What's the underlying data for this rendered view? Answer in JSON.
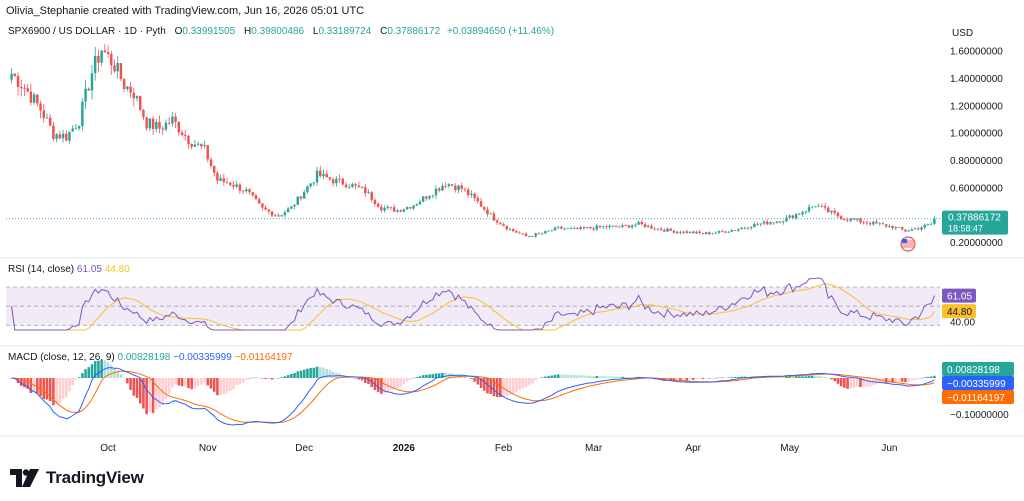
{
  "credit": "Olivia_Stephanie created with TradingView.com, Jun 16, 2026 05:01 UTC",
  "symbol": "SPX6900 / US DOLLAR · 1D · Pyth",
  "ohlc": {
    "o_label": "O",
    "o": "0.33991505",
    "h_label": "H",
    "h": "0.39800486",
    "l_label": "L",
    "l": "0.33189724",
    "c_label": "C",
    "c": "0.37886172",
    "change": "+0.03894650 (+11.46%)"
  },
  "currency": "USD",
  "brand": "TradingView",
  "colors": {
    "up": "#26a69a",
    "down": "#ef5350",
    "rsi": "#7e57c2",
    "rsi_ma": "#fbc02d",
    "macd": "#2962ff",
    "signal": "#ff6d00",
    "hist_up": "#b2dfdb",
    "hist_down": "#ffcdd2"
  },
  "chart_data": [
    {
      "type": "candlestick",
      "series_name": "SPX6900 / US DOLLAR",
      "x_range": [
        "2025-09-01",
        "2026-06-15"
      ],
      "x_ticks": [
        "Oct",
        "Nov",
        "Dec",
        "2026",
        "Feb",
        "Mar",
        "Apr",
        "May",
        "Jun"
      ],
      "y_ticks": [
        "1.60000000",
        "1.40000000",
        "1.20000000",
        "1.00000000",
        "0.80000000",
        "0.60000000",
        "0.20000000"
      ],
      "last_price": "0.37886172",
      "countdown": "18:58:47",
      "close_anchors": [
        [
          "2025-09-01",
          1.44
        ],
        [
          "2025-09-05",
          1.34
        ],
        [
          "2025-09-10",
          1.18
        ],
        [
          "2025-09-14",
          1.0
        ],
        [
          "2025-09-18",
          0.98
        ],
        [
          "2025-09-22",
          1.1
        ],
        [
          "2025-09-26",
          1.45
        ],
        [
          "2025-09-29",
          1.62
        ],
        [
          "2025-10-03",
          1.5
        ],
        [
          "2025-10-06",
          1.36
        ],
        [
          "2025-10-09",
          1.3
        ],
        [
          "2025-10-13",
          1.08
        ],
        [
          "2025-10-17",
          1.04
        ],
        [
          "2025-10-21",
          1.1
        ],
        [
          "2025-10-26",
          0.96
        ],
        [
          "2025-10-31",
          0.88
        ],
        [
          "2025-11-04",
          0.66
        ],
        [
          "2025-11-08",
          0.64
        ],
        [
          "2025-11-13",
          0.58
        ],
        [
          "2025-11-18",
          0.45
        ],
        [
          "2025-11-23",
          0.4
        ],
        [
          "2025-11-27",
          0.46
        ],
        [
          "2025-12-01",
          0.58
        ],
        [
          "2025-12-05",
          0.7
        ],
        [
          "2025-12-10",
          0.66
        ],
        [
          "2025-12-15",
          0.63
        ],
        [
          "2025-12-20",
          0.58
        ],
        [
          "2025-12-25",
          0.46
        ],
        [
          "2025-12-30",
          0.44
        ],
        [
          "2026-01-04",
          0.48
        ],
        [
          "2026-01-09",
          0.56
        ],
        [
          "2026-01-14",
          0.64
        ],
        [
          "2026-01-19",
          0.6
        ],
        [
          "2026-01-24",
          0.5
        ],
        [
          "2026-01-29",
          0.38
        ],
        [
          "2026-02-03",
          0.3
        ],
        [
          "2026-02-08",
          0.25
        ],
        [
          "2026-02-13",
          0.27
        ],
        [
          "2026-02-18",
          0.31
        ],
        [
          "2026-02-23",
          0.3
        ],
        [
          "2026-02-28",
          0.31
        ],
        [
          "2026-03-05",
          0.32
        ],
        [
          "2026-03-10",
          0.32
        ],
        [
          "2026-03-15",
          0.34
        ],
        [
          "2026-03-20",
          0.31
        ],
        [
          "2026-03-25",
          0.29
        ],
        [
          "2026-03-30",
          0.28
        ],
        [
          "2026-04-04",
          0.27
        ],
        [
          "2026-04-09",
          0.28
        ],
        [
          "2026-04-14",
          0.3
        ],
        [
          "2026-04-19",
          0.33
        ],
        [
          "2026-04-24",
          0.35
        ],
        [
          "2026-04-29",
          0.37
        ],
        [
          "2026-05-04",
          0.42
        ],
        [
          "2026-05-09",
          0.48
        ],
        [
          "2026-05-13",
          0.43
        ],
        [
          "2026-05-18",
          0.38
        ],
        [
          "2026-05-23",
          0.36
        ],
        [
          "2026-05-28",
          0.34
        ],
        [
          "2026-06-02",
          0.32
        ],
        [
          "2026-06-06",
          0.29
        ],
        [
          "2026-06-10",
          0.31
        ],
        [
          "2026-06-14",
          0.34
        ],
        [
          "2026-06-15",
          0.379
        ]
      ]
    },
    {
      "type": "line",
      "title": "RSI (14, close)",
      "series": [
        {
          "name": "RSI",
          "value_label": "61.05",
          "last": 61.05
        },
        {
          "name": "RSI MA",
          "value_label": "44.80",
          "last": 44.8
        }
      ],
      "y_ticks": [
        "40.00"
      ],
      "bands": [
        30,
        70
      ]
    },
    {
      "type": "bar",
      "title": "MACD (close, 12, 26, 9)",
      "legend_values": [
        "0.00828198",
        "−0.00335999",
        "−0.01164197"
      ],
      "y_ticks": [
        "−0.10000000"
      ],
      "last": {
        "histogram": 0.00828198,
        "macd": -0.00335999,
        "signal": -0.01164197
      }
    }
  ]
}
